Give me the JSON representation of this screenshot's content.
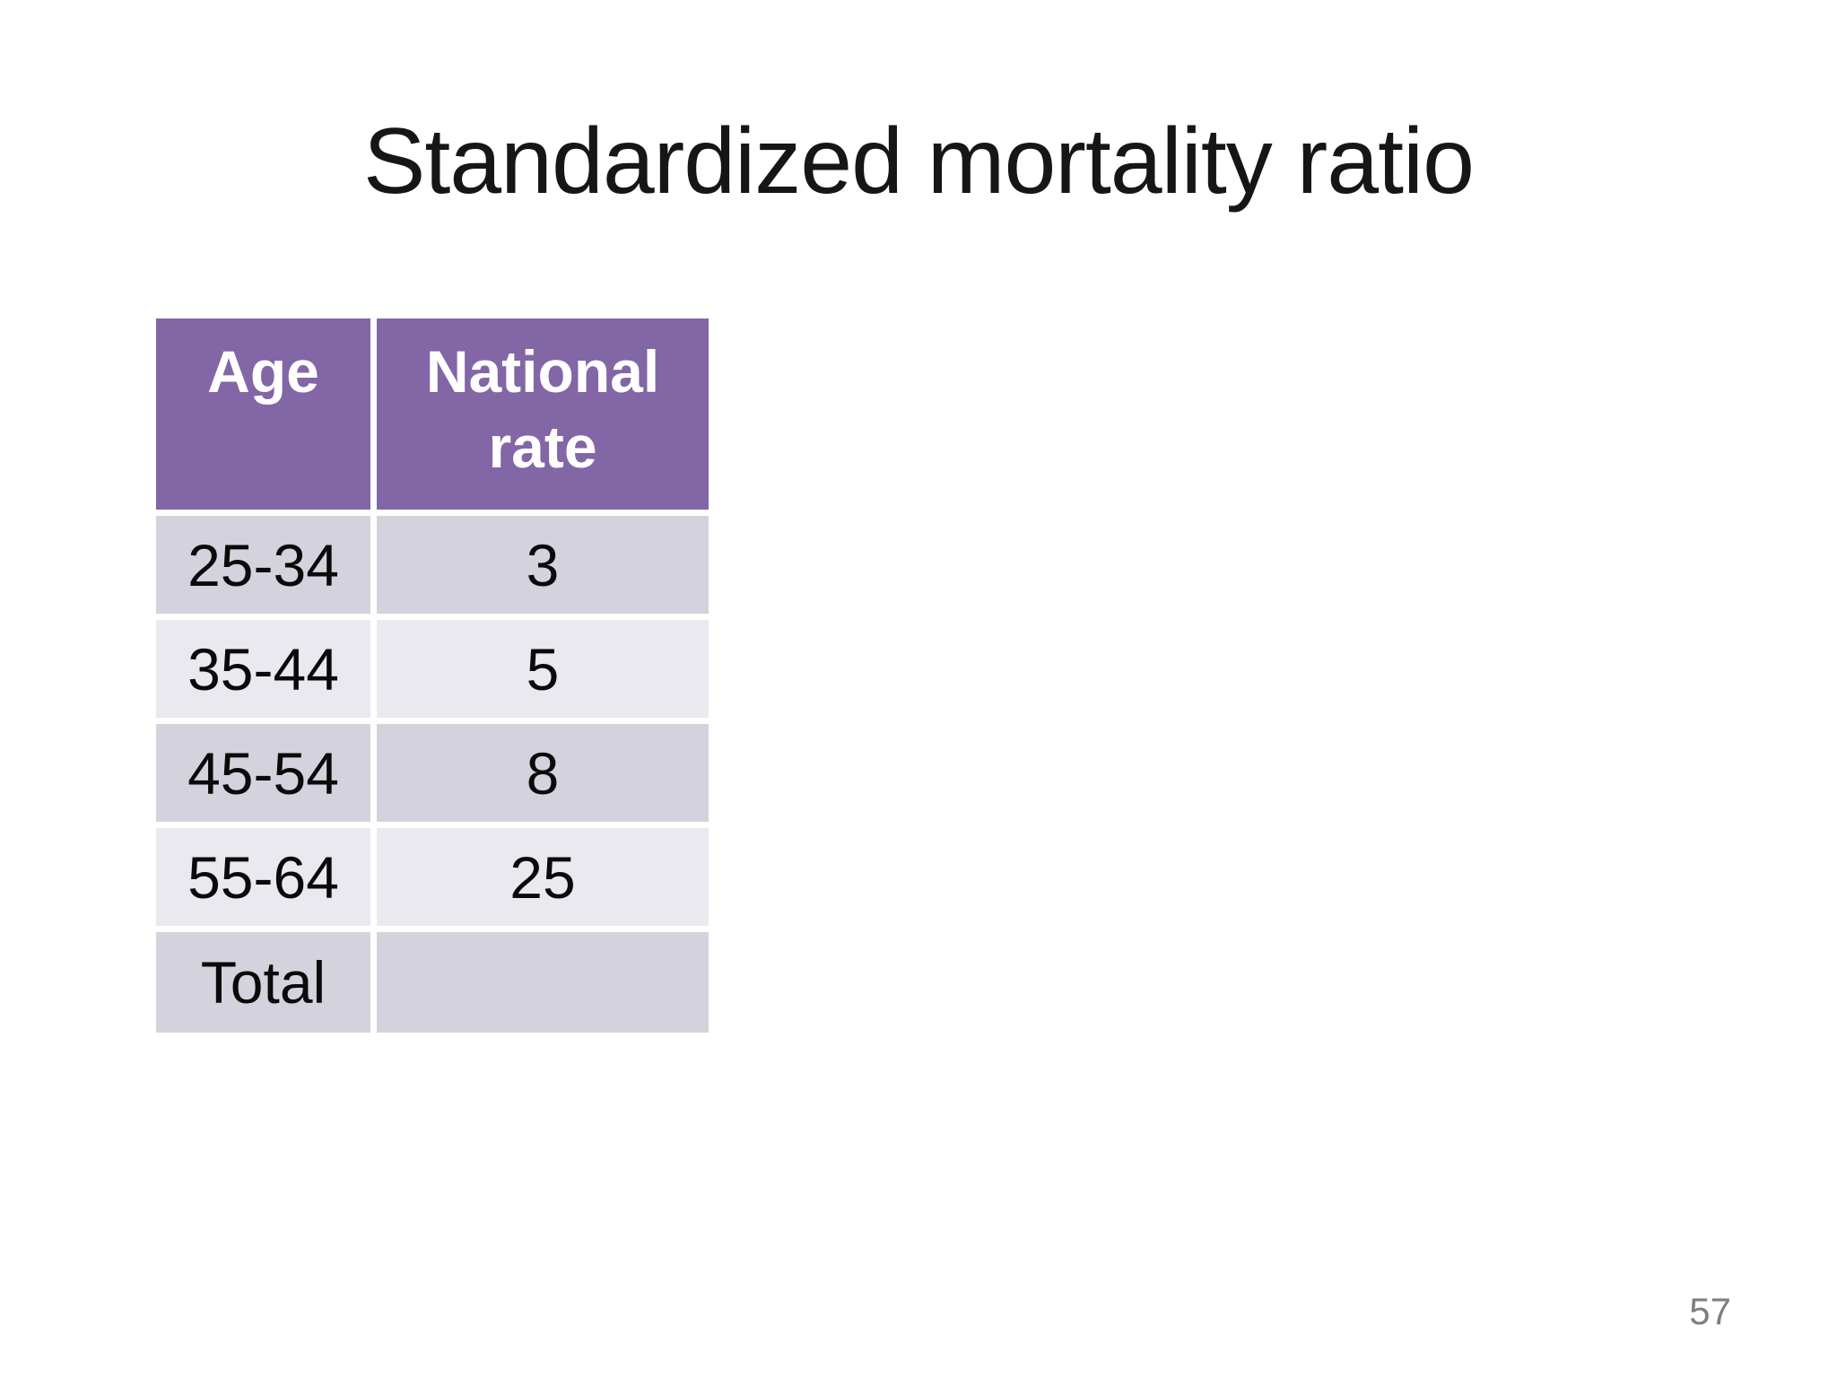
{
  "slide": {
    "title": "Standardized mortality ratio",
    "page_number": "57"
  },
  "table": {
    "columns": [
      "Age",
      "National rate"
    ],
    "rows": [
      {
        "age": "25-34",
        "rate": "3"
      },
      {
        "age": "35-44",
        "rate": "5"
      },
      {
        "age": "45-54",
        "rate": "8"
      },
      {
        "age": "55-64",
        "rate": "25"
      },
      {
        "age": "Total",
        "rate": ""
      }
    ]
  },
  "colors": {
    "header_bg": "#8266a6",
    "band_dark": "#d4d2dc",
    "band_light": "#eae9ef",
    "header_text": "#ffffff",
    "body_text": "#0a0a0a",
    "title_text": "#161616",
    "page_number_text": "#7f7f82",
    "background": "#ffffff"
  },
  "chart_data": {
    "type": "table",
    "title": "Standardized mortality ratio",
    "columns": [
      "Age",
      "National rate"
    ],
    "rows": [
      [
        "25-34",
        3
      ],
      [
        "35-44",
        5
      ],
      [
        "45-54",
        8
      ],
      [
        "55-64",
        25
      ],
      [
        "Total",
        null
      ]
    ]
  }
}
